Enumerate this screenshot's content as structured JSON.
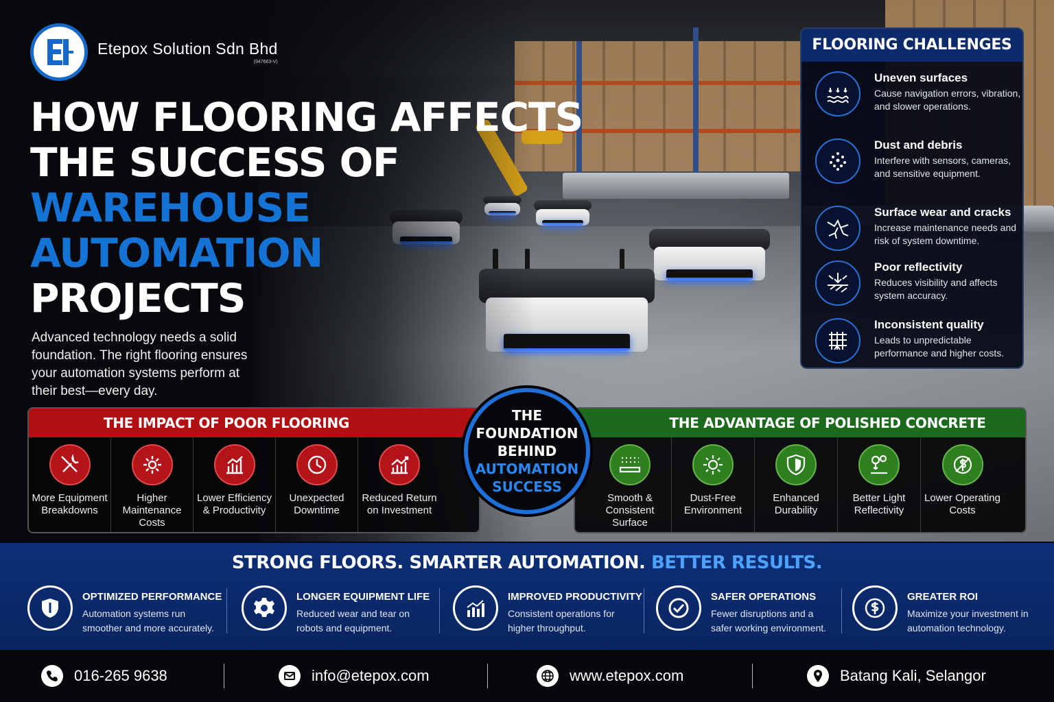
{
  "brand": {
    "name": "Etepox Solution Sdn Bhd",
    "registration": "(947663-V)",
    "brand_color": "#1669c9"
  },
  "headline": {
    "line1": "HOW FLOORING AFFECTS",
    "line2": "THE SUCCESS OF",
    "line3": "WAREHOUSE",
    "line4": "AUTOMATION",
    "line5": "PROJECTS",
    "intro": "Advanced technology needs a solid foundation.  The right flooring ensures your automation systems perform at their best—every day."
  },
  "challenges": {
    "title": "FLOORING CHALLENGES",
    "items": [
      {
        "icon": "uneven-surface-icon",
        "title": "Uneven surfaces",
        "desc": "Cause navigation errors, vibration, and slower operations."
      },
      {
        "icon": "dust-icon",
        "title": "Dust and debris",
        "desc": "Interfere with sensors, cameras, and sensitive equipment."
      },
      {
        "icon": "crack-icon",
        "title": "Surface wear and cracks",
        "desc": "Increase maintenance needs and risk of system downtime."
      },
      {
        "icon": "reflectivity-icon",
        "title": "Poor reflectivity",
        "desc": "Reduces visibility and affects system accuracy."
      },
      {
        "icon": "grid-icon",
        "title": "Inconsistent quality",
        "desc": "Leads to unpredictable performance and higher costs."
      }
    ]
  },
  "impact": {
    "title": "THE IMPACT OF POOR FLOORING",
    "color": "#b10f12",
    "items": [
      {
        "icon": "tools-icon",
        "label": "More Equipment Breakdowns"
      },
      {
        "icon": "gear-icon",
        "label": "Higher Maintenance Costs"
      },
      {
        "icon": "bar-chart-icon",
        "label": "Lower Efficiency & Productivity"
      },
      {
        "icon": "clock-icon",
        "label": "Unexpected Downtime"
      },
      {
        "icon": "roi-chart-icon",
        "label": "Reduced Return on Investment"
      }
    ]
  },
  "center": {
    "line1": "THE",
    "line2": "FOUNDATION",
    "line3": "BEHIND",
    "line4": "AUTOMATION",
    "line5": "SUCCESS"
  },
  "advantage": {
    "title": "THE ADVANTAGE OF POLISHED CONCRETE",
    "color": "#1d6a1f",
    "items": [
      {
        "icon": "smooth-surface-icon",
        "label": "Smooth & Consistent Surface"
      },
      {
        "icon": "sparkle-icon",
        "label": "Dust-Free Environment"
      },
      {
        "icon": "shield-icon",
        "label": "Enhanced Durability"
      },
      {
        "icon": "light-icon",
        "label": "Better Light Reflectivity"
      },
      {
        "icon": "dollar-icon",
        "label": "Lower Operating Costs"
      }
    ]
  },
  "band": {
    "tagline_white": "STRONG FLOORS. SMARTER AUTOMATION.",
    "tagline_blue": "BETTER RESULTS.",
    "benefits": [
      {
        "icon": "shield-icon",
        "title": "OPTIMIZED PERFORMANCE",
        "desc": "Automation systems run smoother and more accurately."
      },
      {
        "icon": "gear-icon",
        "title": "LONGER EQUIPMENT LIFE",
        "desc": "Reduced wear and tear on robots and equipment."
      },
      {
        "icon": "growth-chart-icon",
        "title": "IMPROVED PRODUCTIVITY",
        "desc": "Consistent operations for higher throughput."
      },
      {
        "icon": "check-icon",
        "title": "SAFER OPERATIONS",
        "desc": "Fewer disruptions and a safer working environment."
      },
      {
        "icon": "dollar-icon",
        "title": "GREATER ROI",
        "desc": "Maximize your investment in automation technology."
      }
    ]
  },
  "footer": {
    "phone": "016-265 9638",
    "email": "info@etepox.com",
    "website": "www.etepox.com",
    "location": "Batang Kali, Selangor"
  }
}
